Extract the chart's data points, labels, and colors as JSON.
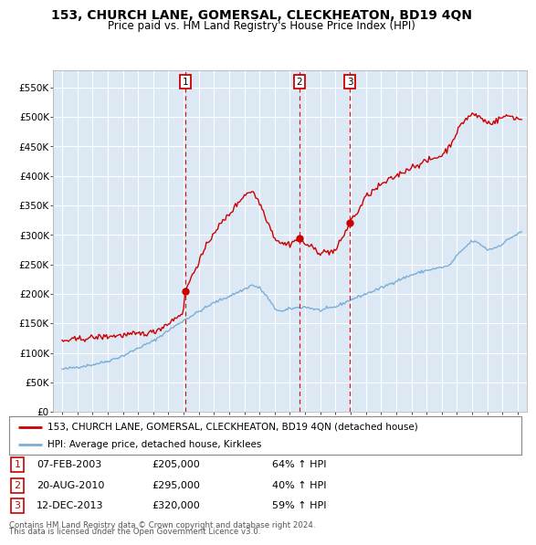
{
  "title": "153, CHURCH LANE, GOMERSAL, CLECKHEATON, BD19 4QN",
  "subtitle": "Price paid vs. HM Land Registry's House Price Index (HPI)",
  "ylim": [
    0,
    580000
  ],
  "legend_house": "153, CHURCH LANE, GOMERSAL, CLECKHEATON, BD19 4QN (detached house)",
  "legend_hpi": "HPI: Average price, detached house, Kirklees",
  "transactions": [
    {
      "num": 1,
      "date": "07-FEB-2003",
      "price": 205000,
      "pct": "64%",
      "dir": "↑",
      "label": "HPI",
      "x": 2003.1
    },
    {
      "num": 2,
      "date": "20-AUG-2010",
      "price": 295000,
      "pct": "40%",
      "dir": "↑",
      "label": "HPI",
      "x": 2010.62
    },
    {
      "num": 3,
      "date": "12-DEC-2013",
      "price": 320000,
      "pct": "59%",
      "dir": "↑",
      "label": "HPI",
      "x": 2013.95
    }
  ],
  "footnote1": "Contains HM Land Registry data © Crown copyright and database right 2024.",
  "footnote2": "This data is licensed under the Open Government Licence v3.0.",
  "house_color": "#cc0000",
  "hpi_color": "#7aaed6",
  "vline_color": "#cc0000",
  "plot_bg_color": "#dce9f5",
  "background_color": "#ffffff",
  "grid_color": "#ffffff",
  "yticks": [
    0,
    50000,
    100000,
    150000,
    200000,
    250000,
    300000,
    350000,
    400000,
    450000,
    500000,
    550000
  ],
  "ylabels": [
    "£0",
    "£50K",
    "£100K",
    "£150K",
    "£200K",
    "£250K",
    "£300K",
    "£350K",
    "£400K",
    "£450K",
    "£500K",
    "£550K"
  ]
}
